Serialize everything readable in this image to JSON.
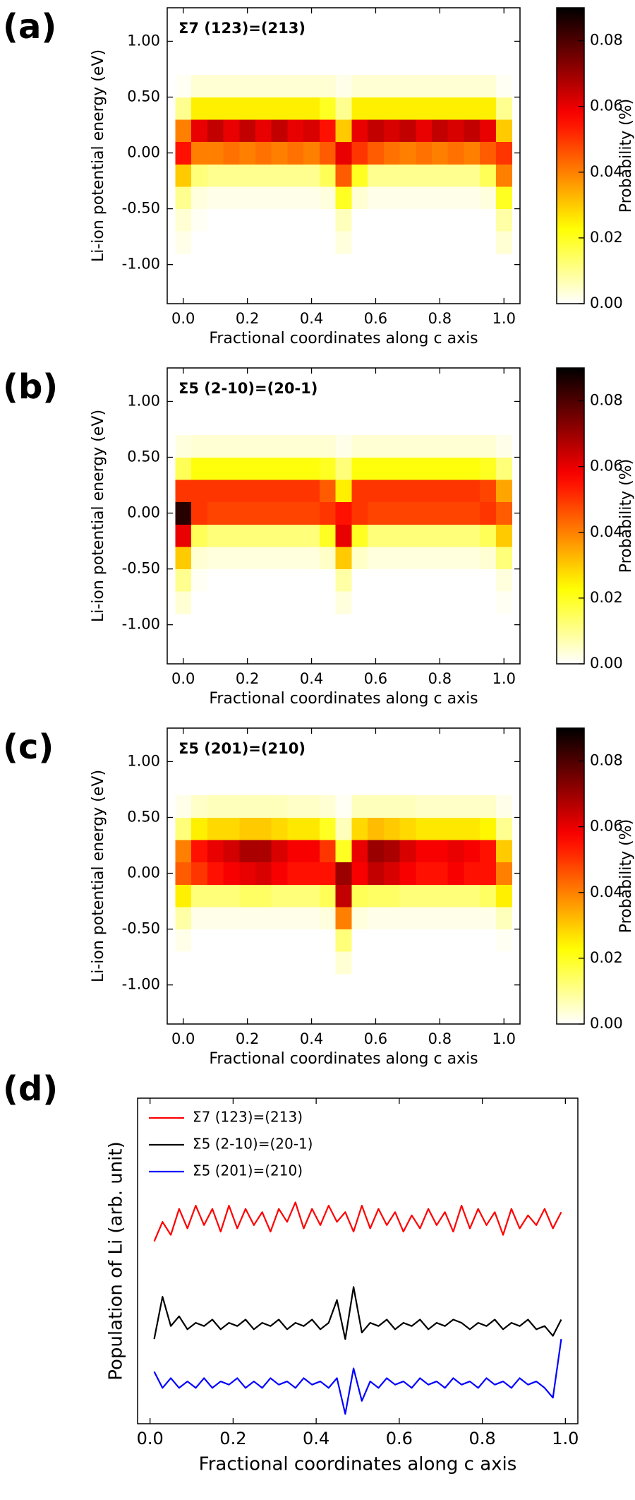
{
  "chart_data": [
    {
      "type": "heatmap",
      "panel_label": "(a)",
      "annotation": "Σ7 (123)=(213)",
      "xlabel": "Fractional coordinates along c axis",
      "ylabel": "Li-ion potential energy (eV)",
      "colorbar_label": "Probability (%)",
      "colormap": "hot_r",
      "x": [
        0,
        0.05,
        0.1,
        0.15,
        0.2,
        0.25,
        0.3,
        0.35,
        0.4,
        0.45,
        0.5,
        0.55,
        0.6,
        0.65,
        0.7,
        0.75,
        0.8,
        0.85,
        0.9,
        0.95,
        1.0
      ],
      "y": [
        -0.8,
        -0.6,
        -0.4,
        -0.2,
        0.0,
        0.2,
        0.4,
        0.6
      ],
      "z": [
        [
          0.002,
          0,
          0,
          0,
          0,
          0,
          0,
          0,
          0,
          0,
          0.003,
          0,
          0,
          0,
          0,
          0,
          0,
          0,
          0,
          0,
          0.004
        ],
        [
          0.004,
          0.001,
          0,
          0,
          0,
          0,
          0,
          0,
          0,
          0,
          0.006,
          0,
          0,
          0,
          0,
          0,
          0,
          0,
          0,
          0,
          0.008
        ],
        [
          0.01,
          0.003,
          0.002,
          0.002,
          0.002,
          0.002,
          0.002,
          0.002,
          0.002,
          0.003,
          0.02,
          0.004,
          0.002,
          0.002,
          0.002,
          0.002,
          0.002,
          0.002,
          0.002,
          0.003,
          0.02
        ],
        [
          0.03,
          0.012,
          0.01,
          0.01,
          0.01,
          0.01,
          0.01,
          0.01,
          0.01,
          0.015,
          0.045,
          0.02,
          0.01,
          0.01,
          0.01,
          0.01,
          0.01,
          0.01,
          0.01,
          0.015,
          0.04
        ],
        [
          0.055,
          0.04,
          0.04,
          0.042,
          0.04,
          0.042,
          0.04,
          0.042,
          0.04,
          0.045,
          0.06,
          0.05,
          0.045,
          0.042,
          0.04,
          0.042,
          0.04,
          0.042,
          0.04,
          0.045,
          0.05
        ],
        [
          0.04,
          0.06,
          0.065,
          0.06,
          0.065,
          0.06,
          0.065,
          0.06,
          0.062,
          0.055,
          0.03,
          0.06,
          0.065,
          0.062,
          0.065,
          0.06,
          0.065,
          0.062,
          0.065,
          0.06,
          0.03
        ],
        [
          0.01,
          0.025,
          0.025,
          0.025,
          0.025,
          0.025,
          0.025,
          0.025,
          0.025,
          0.02,
          0.01,
          0.025,
          0.025,
          0.025,
          0.025,
          0.025,
          0.025,
          0.025,
          0.025,
          0.025,
          0.01
        ],
        [
          0.001,
          0.004,
          0.004,
          0.004,
          0.004,
          0.004,
          0.004,
          0.004,
          0.004,
          0.004,
          0.002,
          0.004,
          0.004,
          0.004,
          0.004,
          0.004,
          0.004,
          0.004,
          0.004,
          0.004,
          0.001
        ]
      ],
      "xlim": [
        -0.05,
        1.05
      ],
      "ylim": [
        -1.35,
        1.3
      ],
      "zlim": [
        0,
        0.09
      ],
      "xticks": [
        {
          "value": 0,
          "label": "0.0"
        },
        {
          "value": 0.2,
          "label": "0.2"
        },
        {
          "value": 0.4,
          "label": "0.4"
        },
        {
          "value": 0.6,
          "label": "0.6"
        },
        {
          "value": 0.8,
          "label": "0.8"
        },
        {
          "value": 1,
          "label": "1.0"
        }
      ],
      "yticks": [
        {
          "value": -1,
          "label": "-1.00"
        },
        {
          "value": -0.5,
          "label": "-0.50"
        },
        {
          "value": 0,
          "label": "0.00"
        },
        {
          "value": 0.5,
          "label": "0.50"
        },
        {
          "value": 1,
          "label": "1.00"
        }
      ],
      "zticks": [
        {
          "value": 0,
          "label": "0.00"
        },
        {
          "value": 0.02,
          "label": "0.02"
        },
        {
          "value": 0.04,
          "label": "0.04"
        },
        {
          "value": 0.06,
          "label": "0.06"
        },
        {
          "value": 0.08,
          "label": "0.08"
        }
      ]
    },
    {
      "type": "heatmap",
      "panel_label": "(b)",
      "annotation": "Σ5 (2-10)=(20-1)",
      "xlabel": "Fractional coordinates along c axis",
      "ylabel": "Li-ion potential energy (eV)",
      "colorbar_label": "Probability (%)",
      "colormap": "hot_r",
      "x": [
        0,
        0.05,
        0.1,
        0.15,
        0.2,
        0.25,
        0.3,
        0.35,
        0.4,
        0.45,
        0.5,
        0.55,
        0.6,
        0.65,
        0.7,
        0.75,
        0.8,
        0.85,
        0.9,
        0.95,
        1.0
      ],
      "y": [
        -0.8,
        -0.6,
        -0.4,
        -0.2,
        0.0,
        0.2,
        0.4,
        0.6
      ],
      "z": [
        [
          0.004,
          0,
          0,
          0,
          0,
          0,
          0,
          0,
          0,
          0,
          0.003,
          0,
          0,
          0,
          0,
          0,
          0,
          0,
          0,
          0,
          0.001
        ],
        [
          0.01,
          0.001,
          0,
          0,
          0,
          0,
          0,
          0,
          0,
          0,
          0.008,
          0,
          0,
          0,
          0,
          0,
          0,
          0,
          0,
          0,
          0.003
        ],
        [
          0.03,
          0.004,
          0.003,
          0.003,
          0.003,
          0.003,
          0.003,
          0.003,
          0.003,
          0.005,
          0.03,
          0.005,
          0.003,
          0.003,
          0.003,
          0.003,
          0.003,
          0.003,
          0.003,
          0.004,
          0.012
        ],
        [
          0.06,
          0.015,
          0.012,
          0.012,
          0.012,
          0.012,
          0.012,
          0.012,
          0.012,
          0.02,
          0.06,
          0.02,
          0.012,
          0.012,
          0.012,
          0.012,
          0.012,
          0.012,
          0.012,
          0.015,
          0.03
        ],
        [
          0.085,
          0.05,
          0.048,
          0.048,
          0.048,
          0.048,
          0.048,
          0.048,
          0.048,
          0.05,
          0.055,
          0.05,
          0.048,
          0.048,
          0.048,
          0.048,
          0.048,
          0.048,
          0.048,
          0.05,
          0.045
        ],
        [
          0.05,
          0.05,
          0.05,
          0.05,
          0.05,
          0.05,
          0.05,
          0.05,
          0.05,
          0.045,
          0.025,
          0.05,
          0.05,
          0.05,
          0.05,
          0.05,
          0.05,
          0.05,
          0.05,
          0.048,
          0.035
        ],
        [
          0.015,
          0.022,
          0.022,
          0.022,
          0.022,
          0.022,
          0.022,
          0.022,
          0.022,
          0.02,
          0.012,
          0.022,
          0.022,
          0.022,
          0.022,
          0.022,
          0.022,
          0.022,
          0.022,
          0.02,
          0.012
        ],
        [
          0.003,
          0.004,
          0.004,
          0.004,
          0.004,
          0.004,
          0.004,
          0.004,
          0.004,
          0.004,
          0.002,
          0.004,
          0.004,
          0.004,
          0.004,
          0.004,
          0.004,
          0.004,
          0.004,
          0.004,
          0.002
        ]
      ],
      "xlim": [
        -0.05,
        1.05
      ],
      "ylim": [
        -1.35,
        1.3
      ],
      "zlim": [
        0,
        0.09
      ],
      "xticks": [
        {
          "value": 0,
          "label": "0.0"
        },
        {
          "value": 0.2,
          "label": "0.2"
        },
        {
          "value": 0.4,
          "label": "0.4"
        },
        {
          "value": 0.6,
          "label": "0.6"
        },
        {
          "value": 0.8,
          "label": "0.8"
        },
        {
          "value": 1,
          "label": "1.0"
        }
      ],
      "yticks": [
        {
          "value": -1,
          "label": "-1.00"
        },
        {
          "value": -0.5,
          "label": "-0.50"
        },
        {
          "value": 0,
          "label": "0.00"
        },
        {
          "value": 0.5,
          "label": "0.50"
        },
        {
          "value": 1,
          "label": "1.00"
        }
      ],
      "zticks": [
        {
          "value": 0,
          "label": "0.00"
        },
        {
          "value": 0.02,
          "label": "0.02"
        },
        {
          "value": 0.04,
          "label": "0.04"
        },
        {
          "value": 0.06,
          "label": "0.06"
        },
        {
          "value": 0.08,
          "label": "0.08"
        }
      ]
    },
    {
      "type": "heatmap",
      "panel_label": "(c)",
      "annotation": "Σ5 (201)=(210)",
      "xlabel": "Fractional coordinates along c axis",
      "ylabel": "Li-ion potential energy (eV)",
      "colorbar_label": "Probability (%)",
      "colormap": "hot_r",
      "x": [
        0,
        0.05,
        0.1,
        0.15,
        0.2,
        0.25,
        0.3,
        0.35,
        0.4,
        0.45,
        0.5,
        0.55,
        0.6,
        0.65,
        0.7,
        0.75,
        0.8,
        0.85,
        0.9,
        0.95,
        1.0
      ],
      "y": [
        -0.8,
        -0.6,
        -0.4,
        -0.2,
        0.0,
        0.2,
        0.4,
        0.6
      ],
      "z": [
        [
          0,
          0,
          0,
          0,
          0,
          0,
          0,
          0,
          0,
          0,
          0.004,
          0,
          0,
          0,
          0,
          0,
          0,
          0,
          0,
          0,
          0
        ],
        [
          0.002,
          0,
          0,
          0,
          0,
          0,
          0,
          0,
          0,
          0,
          0.012,
          0,
          0,
          0,
          0,
          0,
          0,
          0,
          0,
          0,
          0.001
        ],
        [
          0.008,
          0.002,
          0.002,
          0.002,
          0.002,
          0.002,
          0.002,
          0.002,
          0.002,
          0.003,
          0.04,
          0.003,
          0.002,
          0.002,
          0.002,
          0.002,
          0.002,
          0.002,
          0.002,
          0.002,
          0.006
        ],
        [
          0.025,
          0.012,
          0.012,
          0.012,
          0.014,
          0.014,
          0.012,
          0.012,
          0.012,
          0.015,
          0.065,
          0.015,
          0.014,
          0.014,
          0.012,
          0.012,
          0.012,
          0.012,
          0.012,
          0.014,
          0.025
        ],
        [
          0.045,
          0.05,
          0.055,
          0.058,
          0.06,
          0.062,
          0.058,
          0.055,
          0.055,
          0.055,
          0.07,
          0.058,
          0.065,
          0.062,
          0.058,
          0.055,
          0.055,
          0.058,
          0.055,
          0.055,
          0.04
        ],
        [
          0.04,
          0.055,
          0.06,
          0.063,
          0.068,
          0.068,
          0.062,
          0.058,
          0.058,
          0.05,
          0.02,
          0.06,
          0.07,
          0.068,
          0.062,
          0.058,
          0.058,
          0.06,
          0.058,
          0.055,
          0.03
        ],
        [
          0.012,
          0.025,
          0.028,
          0.028,
          0.03,
          0.03,
          0.028,
          0.026,
          0.026,
          0.02,
          0.006,
          0.028,
          0.032,
          0.03,
          0.028,
          0.026,
          0.026,
          0.026,
          0.026,
          0.024,
          0.01
        ],
        [
          0.002,
          0.005,
          0.006,
          0.006,
          0.006,
          0.006,
          0.006,
          0.005,
          0.005,
          0.004,
          0.001,
          0.006,
          0.006,
          0.006,
          0.006,
          0.005,
          0.005,
          0.005,
          0.005,
          0.005,
          0.002
        ]
      ],
      "xlim": [
        -0.05,
        1.05
      ],
      "ylim": [
        -1.35,
        1.3
      ],
      "zlim": [
        0,
        0.09
      ],
      "xticks": [
        {
          "value": 0,
          "label": "0.0"
        },
        {
          "value": 0.2,
          "label": "0.2"
        },
        {
          "value": 0.4,
          "label": "0.4"
        },
        {
          "value": 0.6,
          "label": "0.6"
        },
        {
          "value": 0.8,
          "label": "0.8"
        },
        {
          "value": 1,
          "label": "1.0"
        }
      ],
      "yticks": [
        {
          "value": -1,
          "label": "-1.00"
        },
        {
          "value": -0.5,
          "label": "-0.50"
        },
        {
          "value": 0,
          "label": "0.00"
        },
        {
          "value": 0.5,
          "label": "0.50"
        },
        {
          "value": 1,
          "label": "1.00"
        }
      ],
      "zticks": [
        {
          "value": 0,
          "label": "0.00"
        },
        {
          "value": 0.02,
          "label": "0.02"
        },
        {
          "value": 0.04,
          "label": "0.04"
        },
        {
          "value": 0.06,
          "label": "0.06"
        },
        {
          "value": 0.08,
          "label": "0.08"
        }
      ]
    },
    {
      "type": "line",
      "panel_label": "(d)",
      "xlabel": "Fractional coordinates along c axis",
      "ylabel": "Population of Li (arb. unit)",
      "legend": "upper left",
      "x": [
        0.01,
        0.03,
        0.05,
        0.07,
        0.09,
        0.11,
        0.13,
        0.15,
        0.17,
        0.19,
        0.21,
        0.23,
        0.25,
        0.27,
        0.29,
        0.31,
        0.33,
        0.35,
        0.37,
        0.39,
        0.41,
        0.43,
        0.45,
        0.47,
        0.49,
        0.51,
        0.53,
        0.55,
        0.57,
        0.59,
        0.61,
        0.63,
        0.65,
        0.67,
        0.69,
        0.71,
        0.73,
        0.75,
        0.77,
        0.79,
        0.81,
        0.83,
        0.85,
        0.87,
        0.89,
        0.91,
        0.93,
        0.95,
        0.97,
        0.99
      ],
      "series": [
        {
          "name": "Σ7 (123)=(213)",
          "color": "#ff0000",
          "values": [
            5.6,
            6.2,
            5.8,
            6.6,
            6.0,
            6.7,
            6.1,
            6.6,
            5.9,
            6.7,
            6.0,
            6.6,
            6.1,
            6.5,
            5.9,
            6.6,
            6.2,
            6.8,
            6.0,
            6.6,
            6.1,
            6.7,
            6.2,
            6.5,
            5.9,
            6.7,
            6.0,
            6.6,
            6.1,
            6.5,
            5.9,
            6.4,
            6.0,
            6.6,
            6.1,
            6.5,
            5.9,
            6.7,
            6.0,
            6.6,
            6.1,
            6.5,
            5.8,
            6.6,
            6.0,
            6.4,
            6.1,
            6.6,
            6.0,
            6.5
          ]
        },
        {
          "name": "Σ5 (2-10)=(20-1)",
          "color": "#000000",
          "values": [
            2.6,
            3.9,
            3.0,
            3.3,
            2.9,
            3.1,
            3.0,
            3.2,
            2.9,
            3.1,
            3.0,
            3.2,
            2.9,
            3.1,
            3.0,
            3.2,
            2.9,
            3.1,
            3.0,
            3.2,
            2.9,
            3.1,
            3.8,
            2.6,
            4.2,
            2.8,
            3.1,
            3.0,
            3.2,
            2.9,
            3.1,
            3.0,
            3.2,
            2.9,
            3.1,
            3.0,
            3.2,
            3.1,
            2.9,
            3.1,
            3.0,
            3.2,
            2.9,
            3.1,
            3.0,
            3.2,
            2.9,
            3.0,
            2.7,
            3.2
          ]
        },
        {
          "name": "Σ5 (201)=(210)",
          "color": "#0000ff",
          "values": [
            1.6,
            1.1,
            1.4,
            1.1,
            1.3,
            1.1,
            1.4,
            1.1,
            1.3,
            1.2,
            1.4,
            1.1,
            1.3,
            1.1,
            1.4,
            1.2,
            1.3,
            1.1,
            1.4,
            1.2,
            1.3,
            1.1,
            1.4,
            0.3,
            1.7,
            0.7,
            1.3,
            1.1,
            1.4,
            1.2,
            1.3,
            1.1,
            1.4,
            1.2,
            1.3,
            1.1,
            1.4,
            1.2,
            1.3,
            1.1,
            1.4,
            1.2,
            1.3,
            1.1,
            1.4,
            1.2,
            1.3,
            1.1,
            0.8,
            2.6
          ]
        }
      ],
      "xlim": [
        -0.03,
        1.03
      ],
      "ylim": [
        0,
        10
      ],
      "xticks": [
        {
          "value": 0,
          "label": "0.0"
        },
        {
          "value": 0.2,
          "label": "0.2"
        },
        {
          "value": 0.4,
          "label": "0.4"
        },
        {
          "value": 0.6,
          "label": "0.6"
        },
        {
          "value": 0.8,
          "label": "0.8"
        },
        {
          "value": 1,
          "label": "1.0"
        }
      ]
    }
  ]
}
